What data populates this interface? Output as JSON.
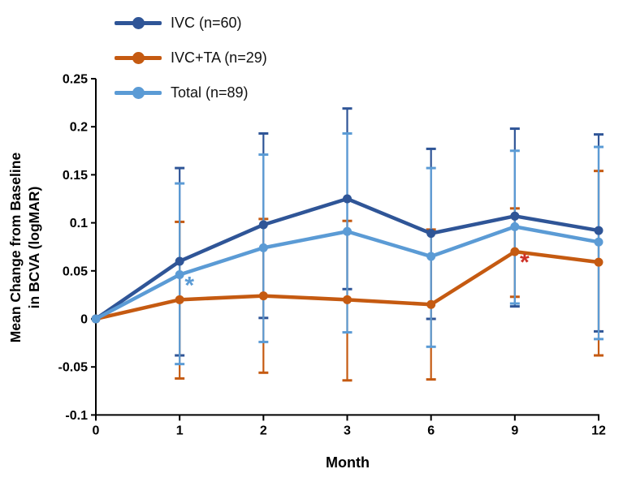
{
  "chart_data": {
    "type": "line",
    "title": "",
    "xlabel": "Month",
    "ylabel": "Mean Change from Baseline in BCVA (logMAR)",
    "ylabel_line1": "Mean Change from Baseline",
    "ylabel_line2": "in BCVA (logMAR)",
    "categories": [
      "0",
      "1",
      "2",
      "3",
      "6",
      "9",
      "12"
    ],
    "ylim": [
      -0.1,
      0.25
    ],
    "y_ticks": [
      {
        "v": 0.25,
        "label": "0.25"
      },
      {
        "v": 0.2,
        "label": "0.2"
      },
      {
        "v": 0.15,
        "label": "0.15"
      },
      {
        "v": 0.1,
        "label": "0.1"
      },
      {
        "v": 0.05,
        "label": "0.05"
      },
      {
        "v": 0,
        "label": "0"
      },
      {
        "v": -0.05,
        "label": "-0.05"
      },
      {
        "v": -0.1,
        "label": "-0.1"
      }
    ],
    "grid": false,
    "legend_position": "top-left",
    "series": [
      {
        "name": "IVC (n=60)",
        "color": "#2F5597",
        "values": [
          0,
          0.06,
          0.098,
          0.125,
          0.089,
          0.107,
          0.092
        ],
        "err_hi": [
          null,
          0.157,
          0.193,
          0.219,
          0.177,
          0.198,
          0.192
        ],
        "err_lo": [
          null,
          -0.038,
          0.001,
          0.031,
          0.0,
          0.013,
          -0.013
        ]
      },
      {
        "name": "IVC+TA (n=29)",
        "color": "#C55A11",
        "values": [
          0,
          0.02,
          0.024,
          0.02,
          0.015,
          0.07,
          0.059
        ],
        "err_hi": [
          null,
          0.101,
          0.104,
          0.102,
          0.093,
          0.115,
          0.154
        ],
        "err_lo": [
          null,
          -0.062,
          -0.056,
          -0.064,
          -0.063,
          0.023,
          -0.038
        ]
      },
      {
        "name": "Total (n=89)",
        "color": "#5B9BD5",
        "values": [
          0,
          0.046,
          0.074,
          0.091,
          0.065,
          0.096,
          0.08
        ],
        "err_hi": [
          null,
          0.141,
          0.171,
          0.193,
          0.157,
          0.175,
          0.179
        ],
        "err_lo": [
          null,
          -0.047,
          -0.024,
          -0.014,
          -0.029,
          0.016,
          -0.021
        ]
      }
    ],
    "annotations": [
      {
        "symbol": "*",
        "series": "Total (n=89)",
        "month": "1",
        "color": "#5B9BD5"
      },
      {
        "symbol": "*",
        "series": "IVC+TA (n=29)",
        "month": "9",
        "color": "#CE3126"
      }
    ]
  }
}
